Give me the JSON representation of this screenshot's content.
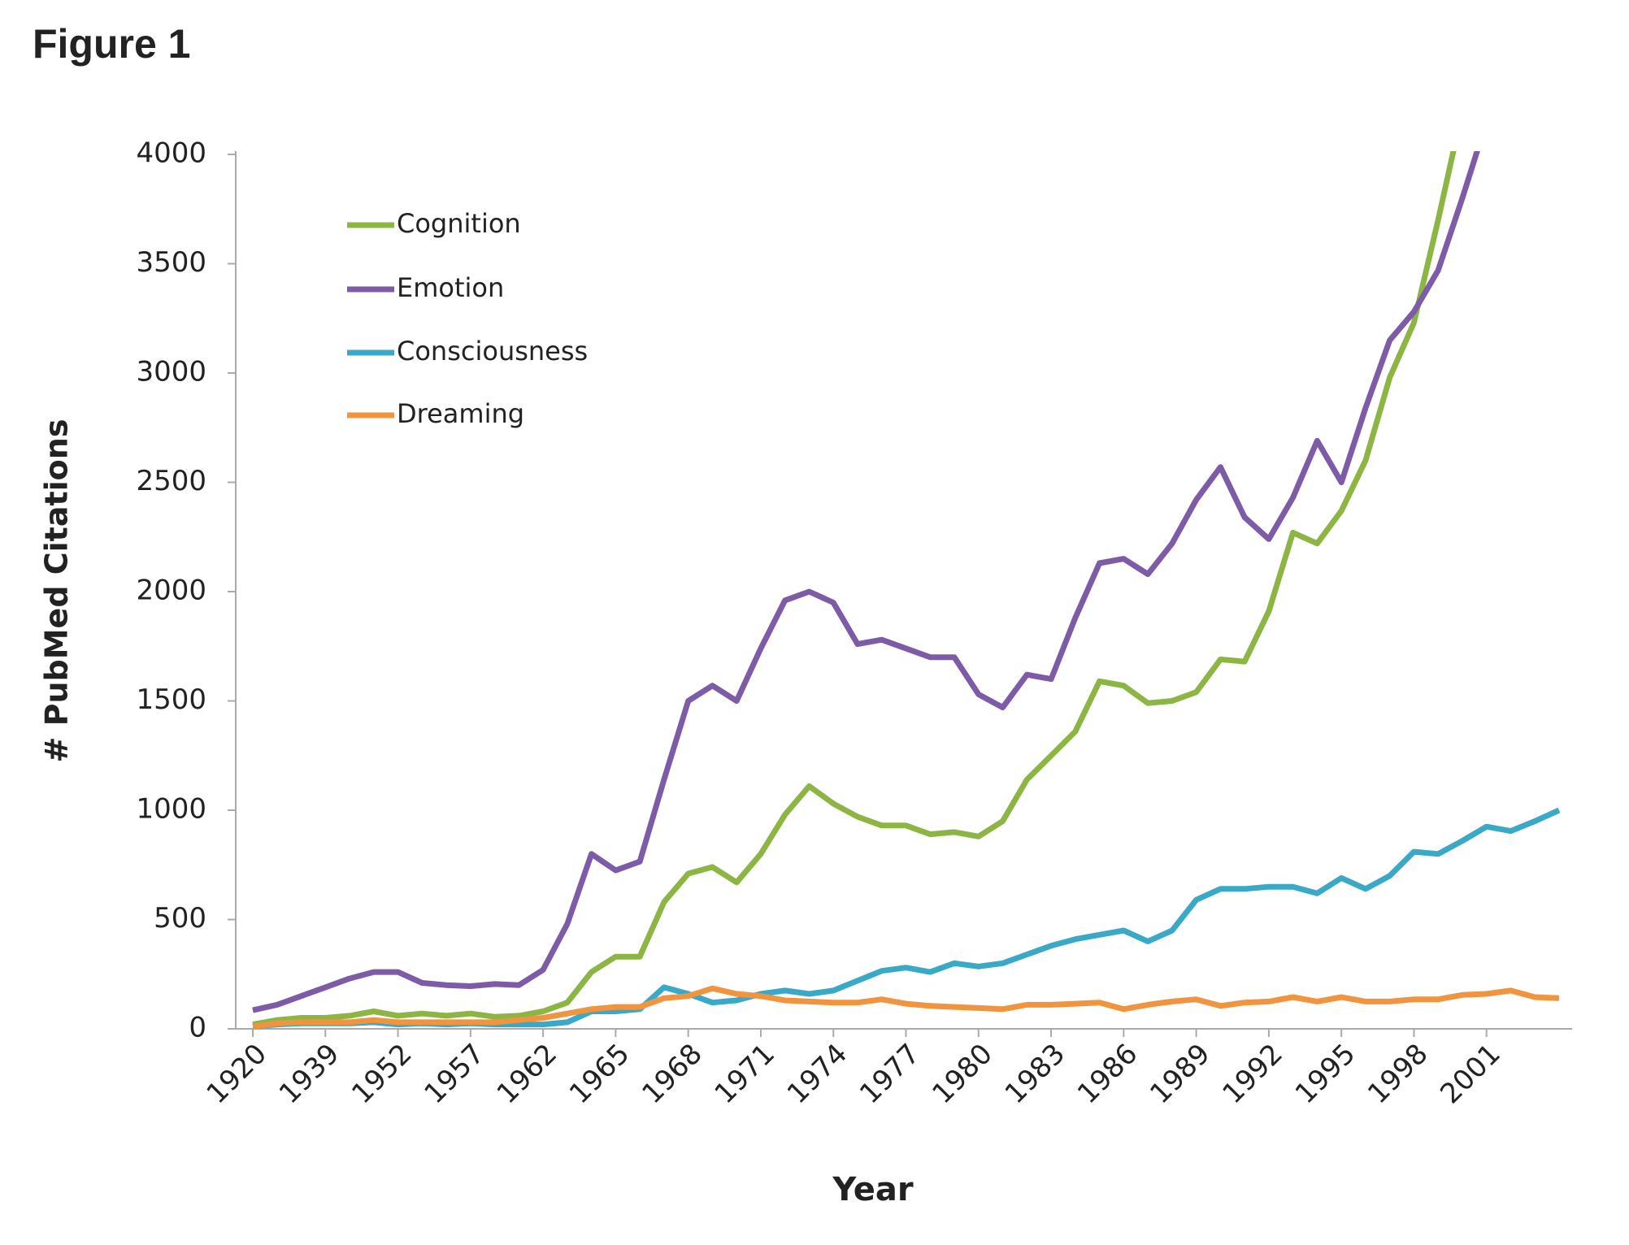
{
  "chart_data": {
    "type": "line",
    "figure_label": "Figure 1",
    "x_label": "Year",
    "y_label": "# PubMed Citations",
    "categories": [
      "1920",
      null,
      null,
      "1939",
      null,
      null,
      "1952",
      null,
      null,
      "1957",
      null,
      null,
      "1962",
      null,
      null,
      "1965",
      null,
      null,
      "1968",
      null,
      null,
      "1971",
      null,
      null,
      "1974",
      null,
      null,
      "1977",
      null,
      null,
      "1980",
      null,
      null,
      "1983",
      null,
      null,
      "1986",
      null,
      null,
      "1989",
      null,
      null,
      "1992",
      null,
      null,
      "1995",
      null,
      null,
      "1998",
      null,
      null,
      "2001",
      null,
      null,
      null
    ],
    "series": [
      {
        "name": "Cognition",
        "color": "#8db544",
        "values": [
          20,
          40,
          50,
          50,
          60,
          80,
          60,
          70,
          60,
          70,
          55,
          60,
          80,
          120,
          260,
          330,
          330,
          580,
          710,
          740,
          670,
          800,
          980,
          1110,
          1030,
          970,
          930,
          930,
          890,
          900,
          880,
          950,
          1140,
          1250,
          1360,
          1590,
          1570,
          1490,
          1500,
          1540,
          1690,
          1680,
          1910,
          2270,
          2220,
          2370,
          2600,
          2980,
          3230,
          3700,
          4200,
          null,
          null,
          null,
          null
        ]
      },
      {
        "name": "Emotion",
        "color": "#7d5ba6",
        "values": [
          85,
          110,
          150,
          190,
          230,
          260,
          260,
          210,
          200,
          195,
          205,
          200,
          270,
          480,
          800,
          725,
          765,
          1140,
          1500,
          1570,
          1500,
          1740,
          1960,
          2000,
          1950,
          1760,
          1780,
          1740,
          1700,
          1700,
          1530,
          1470,
          1620,
          1600,
          1880,
          2130,
          2150,
          2080,
          2220,
          2420,
          2570,
          2340,
          2240,
          2430,
          2690,
          2500,
          2840,
          3150,
          3280,
          3470,
          3800,
          4150,
          null,
          null,
          null
        ]
      },
      {
        "name": "Consciousness",
        "color": "#3aa9c7",
        "values": [
          10,
          20,
          25,
          25,
          25,
          30,
          20,
          25,
          20,
          25,
          20,
          20,
          20,
          30,
          80,
          80,
          90,
          190,
          160,
          120,
          130,
          160,
          175,
          160,
          175,
          220,
          265,
          280,
          260,
          300,
          285,
          300,
          340,
          380,
          410,
          430,
          450,
          400,
          450,
          590,
          640,
          640,
          650,
          650,
          620,
          690,
          640,
          700,
          810,
          800,
          860,
          925,
          905,
          950,
          1000
        ]
      },
      {
        "name": "Dreaming",
        "color": "#f0943f",
        "values": [
          10,
          25,
          30,
          30,
          30,
          40,
          30,
          30,
          30,
          30,
          30,
          40,
          50,
          70,
          90,
          100,
          100,
          140,
          150,
          185,
          160,
          150,
          130,
          125,
          120,
          120,
          135,
          115,
          105,
          100,
          95,
          90,
          110,
          110,
          115,
          120,
          90,
          110,
          125,
          135,
          105,
          120,
          125,
          145,
          125,
          145,
          125,
          125,
          135,
          135,
          155,
          160,
          175,
          145,
          140
        ]
      }
    ],
    "ylim": [
      0,
      4000
    ],
    "yticks": [
      0,
      500,
      1000,
      1500,
      2000,
      2500,
      3000,
      3500,
      4000
    ],
    "grid": false,
    "legend": "upper left"
  }
}
